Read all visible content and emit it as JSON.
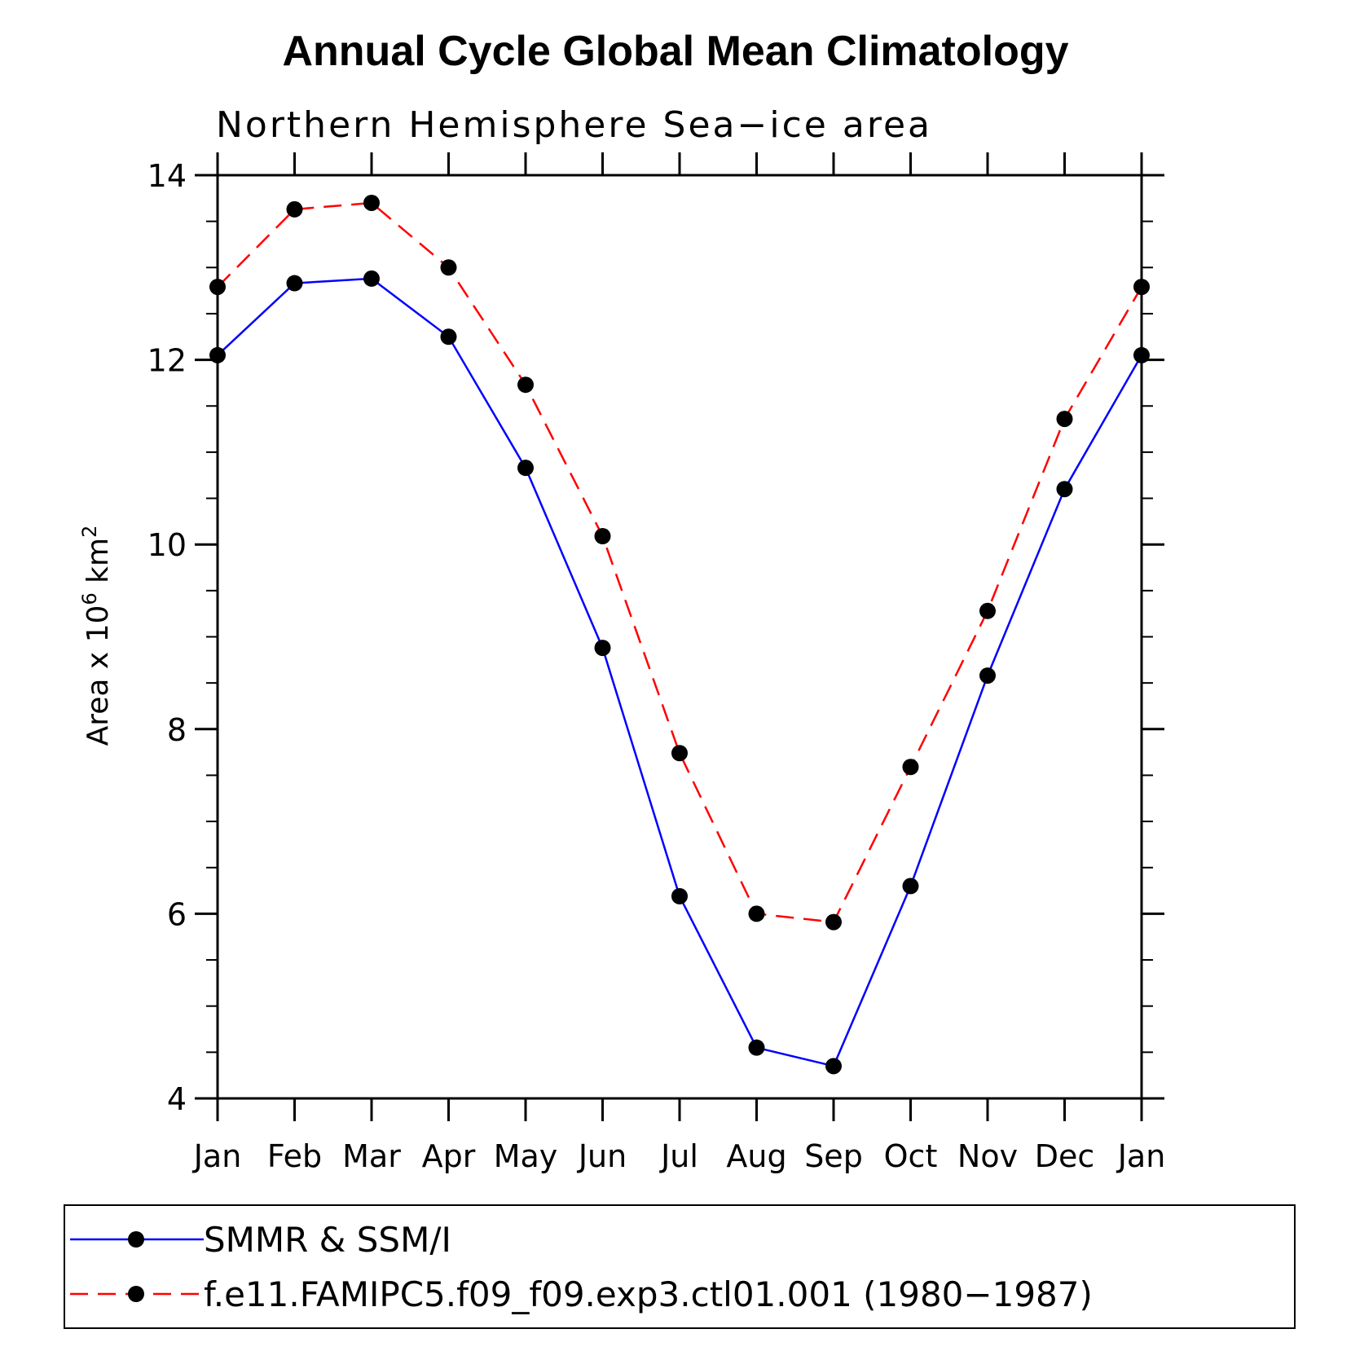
{
  "chart_data": {
    "type": "line",
    "title": "Annual Cycle Global Mean Climatology",
    "subtitle": "Northern Hemisphere Sea−ice area",
    "ylabel_main": "Area x 10",
    "ylabel_sup": "6",
    "ylabel_unit": "km",
    "ylabel_unit_sup": "2",
    "xlabel": "",
    "categories": [
      "Jan",
      "Feb",
      "Mar",
      "Apr",
      "May",
      "Jun",
      "Jul",
      "Aug",
      "Sep",
      "Oct",
      "Nov",
      "Dec",
      "Jan"
    ],
    "ylim": [
      4,
      14
    ],
    "yticks": [
      "4",
      "6",
      "8",
      "10",
      "12",
      "14"
    ],
    "legend_position": "bottom",
    "series": [
      {
        "name": "SMMR & SSM/I",
        "color": "#0000ff",
        "dash": "solid",
        "values": [
          12.05,
          12.83,
          12.88,
          12.25,
          10.83,
          8.88,
          6.19,
          4.55,
          4.35,
          6.3,
          8.58,
          10.6,
          12.05
        ]
      },
      {
        "name": "f.e11.FAMIPC5.f09_f09.exp3.ctl01.001 (1980−1987)",
        "color": "#ff0000",
        "dash": "dashed",
        "values": [
          12.79,
          13.63,
          13.7,
          13.0,
          11.73,
          10.09,
          7.74,
          6.0,
          5.91,
          7.59,
          9.28,
          11.36,
          12.79
        ]
      }
    ]
  }
}
